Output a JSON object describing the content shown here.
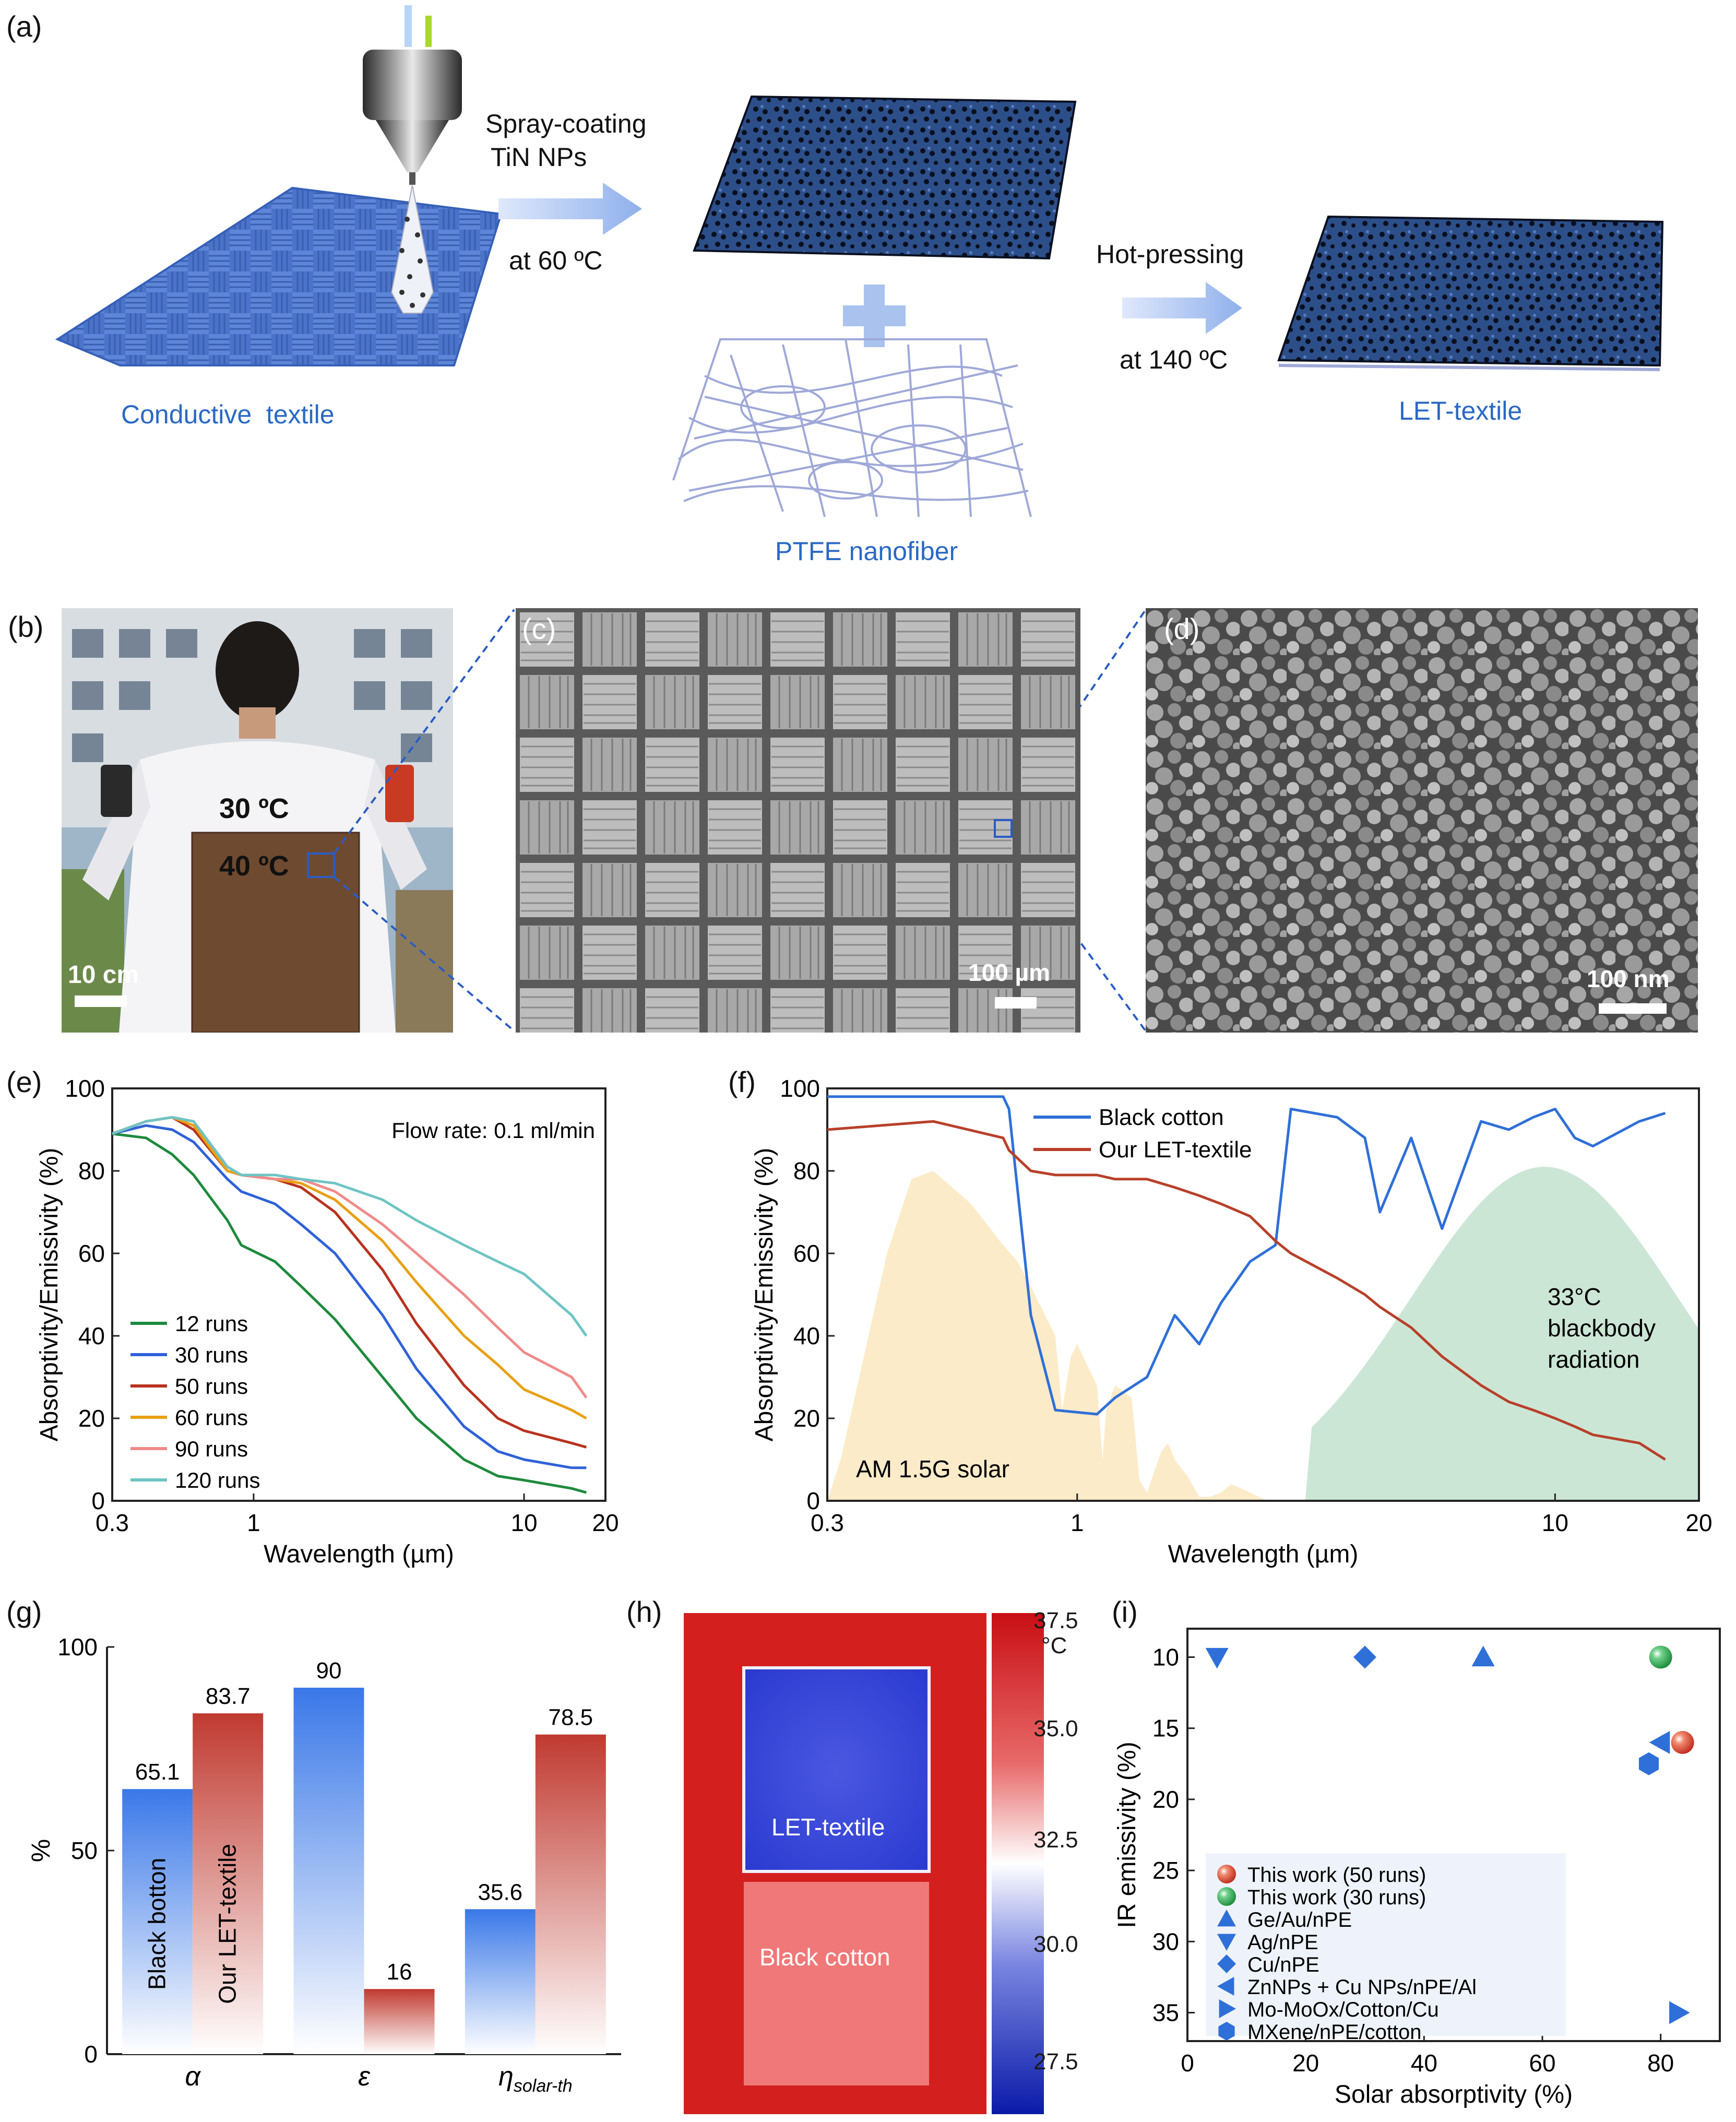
{
  "panels": {
    "a": "(a)",
    "b": "(b)",
    "c": "(c)",
    "d": "(d)",
    "e": "(e)",
    "f": "(f)",
    "g": "(g)",
    "h": "(h)",
    "i": "(i)"
  },
  "schematic": {
    "conductive_textile": "Conductive  textile",
    "spray_coating": "Spray-coating",
    "tin_nps": "TiN NPs",
    "at_60": "at 60 ºC",
    "ptfe": "PTFE nanofiber",
    "hot_pressing": "Hot-pressing",
    "at_140": "at 140 ºC",
    "let_textile": "LET-textile"
  },
  "photo_b": {
    "temp_top": "30 ºC",
    "temp_patch": "40 ºC",
    "scale": "10 cm"
  },
  "sem_c": {
    "scale": "100 µm"
  },
  "sem_d": {
    "scale": "100 nm"
  },
  "thermal_h": {
    "label_top": "LET-textile",
    "label_bottom": "Black cotton",
    "colorbar_ticks": [
      "37.5",
      "35.0",
      "32.5",
      "30.0",
      "27.5"
    ],
    "unit": "°C",
    "colors": {
      "hot": "#d41f1f",
      "cold": "#1e2fc8"
    }
  },
  "chart_data": [
    {
      "panel": "e",
      "type": "line",
      "xscale": "log",
      "xlim": [
        0.3,
        20
      ],
      "ylim": [
        0,
        100
      ],
      "xticks": [
        "0.3",
        "1",
        "10",
        "20"
      ],
      "yticks": [
        "0",
        "20",
        "40",
        "60",
        "80",
        "100"
      ],
      "xlabel": "Wavelength (µm)",
      "ylabel": "Absorptivity/Emissivity (%)",
      "annotation": "Flow rate: 0.1 ml/min",
      "x": [
        0.3,
        0.4,
        0.5,
        0.6,
        0.8,
        0.9,
        1.2,
        1.5,
        2,
        3,
        4,
        6,
        8,
        10,
        15,
        17
      ],
      "series": [
        {
          "name": "12 runs",
          "color": "#1e8a3c",
          "values": [
            89,
            88,
            84,
            79,
            68,
            62,
            58,
            52,
            44,
            30,
            20,
            10,
            6,
            5,
            3,
            2
          ]
        },
        {
          "name": "30 runs",
          "color": "#2f62d8",
          "values": [
            89,
            91,
            90,
            87,
            78,
            75,
            72,
            67,
            60,
            45,
            32,
            18,
            12,
            10,
            8,
            8
          ]
        },
        {
          "name": "50 runs",
          "color": "#b8321e",
          "values": [
            89,
            92,
            93,
            90,
            80,
            79,
            78,
            76,
            70,
            56,
            43,
            28,
            20,
            17,
            14,
            13
          ]
        },
        {
          "name": "60 runs",
          "color": "#e8a011",
          "values": [
            89,
            92,
            93,
            91,
            80,
            79,
            78,
            77,
            73,
            63,
            53,
            40,
            33,
            27,
            22,
            20
          ]
        },
        {
          "name": "90 runs",
          "color": "#f08a8a",
          "values": [
            89,
            92,
            93,
            92,
            81,
            79,
            78,
            78,
            75,
            67,
            60,
            50,
            42,
            36,
            30,
            25
          ]
        },
        {
          "name": "120 runs",
          "color": "#6fc4c4",
          "values": [
            89,
            92,
            93,
            92,
            81,
            79,
            79,
            78,
            77,
            73,
            68,
            62,
            58,
            55,
            45,
            40
          ]
        }
      ]
    },
    {
      "panel": "f",
      "type": "line",
      "xscale": "log",
      "xlim": [
        0.3,
        20
      ],
      "ylim": [
        0,
        100
      ],
      "xticks": [
        "0.3",
        "1",
        "10",
        "20"
      ],
      "yticks": [
        "0",
        "20",
        "40",
        "60",
        "80",
        "100"
      ],
      "xlabel": "Wavelength (µm)",
      "ylabel": "Absorptivity/Emissivity (%)",
      "solar_label": "AM 1.5G solar",
      "blackbody_label": [
        "33°C",
        "blackbody",
        "radiation"
      ],
      "blackbody_peak": [
        9.5,
        81
      ],
      "x": [
        0.3,
        0.5,
        0.7,
        0.72,
        0.8,
        0.9,
        1.1,
        1.2,
        1.4,
        1.6,
        1.8,
        2.0,
        2.3,
        2.6,
        2.8,
        3.5,
        4.0,
        4.3,
        5.0,
        5.8,
        7,
        8,
        9,
        10,
        11,
        12,
        15,
        17
      ],
      "series": [
        {
          "name": "Black cotton",
          "color": "#2f6fd8",
          "values": [
            98,
            98,
            98,
            95,
            45,
            22,
            21,
            25,
            30,
            45,
            38,
            48,
            58,
            62,
            95,
            93,
            88,
            70,
            88,
            66,
            92,
            90,
            93,
            95,
            88,
            86,
            92,
            94
          ]
        },
        {
          "name": "Our LET-textile",
          "color": "#b8402a",
          "values": [
            90,
            92,
            88,
            85,
            80,
            79,
            79,
            78,
            78,
            76,
            74,
            72,
            69,
            63,
            60,
            54,
            50,
            47,
            42,
            35,
            28,
            24,
            22,
            20,
            18,
            16,
            14,
            10
          ]
        }
      ]
    },
    {
      "panel": "g",
      "type": "bar",
      "ylabel": "%",
      "ylim": [
        0,
        100
      ],
      "yticks": [
        "0",
        "50",
        "100"
      ],
      "categories": [
        "α",
        "ε",
        "η"
      ],
      "category_sub": [
        "",
        "",
        "solar-th"
      ],
      "series": [
        {
          "name": "Black botton",
          "color": "#3a78e8",
          "values": [
            65.1,
            90,
            35.6
          ]
        },
        {
          "name": "Our LET-textile",
          "color": "#c03a30",
          "values": [
            83.7,
            16,
            78.5
          ]
        }
      ]
    },
    {
      "panel": "i",
      "type": "scatter",
      "xlim": [
        0,
        90
      ],
      "ylim": [
        8,
        37
      ],
      "yinverted": true,
      "xticks": [
        "0",
        "20",
        "40",
        "60",
        "80"
      ],
      "yticks": [
        "10",
        "15",
        "20",
        "25",
        "30",
        "35"
      ],
      "xlabel": "Solar absorptivity (%)",
      "ylabel": "IR emissivity (%)",
      "series": [
        {
          "name": "This work (50 runs)",
          "marker": "sphere-red",
          "points": [
            [
              83.7,
              16
            ]
          ]
        },
        {
          "name": "This work (30 runs)",
          "marker": "sphere-green",
          "points": [
            [
              80,
              10
            ]
          ]
        },
        {
          "name": "Ge/Au/nPE",
          "marker": "triangle-up",
          "points": [
            [
              50,
              10
            ]
          ]
        },
        {
          "name": "Ag/nPE",
          "marker": "triangle-down",
          "points": [
            [
              5,
              10
            ]
          ]
        },
        {
          "name": "Cu/nPE",
          "marker": "diamond",
          "points": [
            [
              30,
              10
            ]
          ]
        },
        {
          "name": "ZnNPs + Cu NPs/nPE/Al",
          "marker": "triangle-left",
          "points": [
            [
              80,
              16
            ]
          ]
        },
        {
          "name": "Mo-MoOx/Cotton/Cu",
          "marker": "triangle-right",
          "points": [
            [
              83,
              35
            ]
          ]
        },
        {
          "name": "MXene/nPE/cotton",
          "marker": "hexagon",
          "points": [
            [
              78,
              17.5
            ]
          ]
        }
      ]
    }
  ]
}
